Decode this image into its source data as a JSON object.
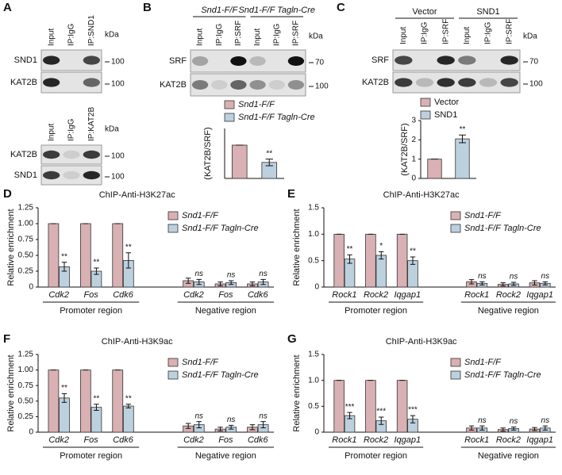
{
  "panels": [
    "A",
    "B",
    "C",
    "D",
    "E",
    "F",
    "G"
  ],
  "blots": [
    {
      "unit": "kDa",
      "lanes": [
        "Input",
        "IP:IgG",
        "IP:SND1"
      ],
      "rows": [
        {
          "label": "SND1",
          "marker": "100"
        },
        {
          "label": "KAT2B",
          "marker": "100"
        }
      ]
    },
    {
      "unit": "kDa",
      "lanes": [
        "Input",
        "IP:IgG",
        "IP:KAT2B"
      ],
      "rows": [
        {
          "label": "KAT2B",
          "marker": "100"
        },
        {
          "label": "SND1",
          "marker": "100"
        }
      ]
    },
    {
      "unit": "kDa",
      "groups": [
        "Snd1-F/F",
        "Snd1-F/F Tagln-Cre"
      ],
      "lanes": [
        "Input",
        "IP:IgG",
        "IP:SRF",
        "Input",
        "IP:IgG",
        "IP:SRF"
      ],
      "rows": [
        {
          "label": "SRF",
          "marker": "70"
        },
        {
          "label": "KAT2B",
          "marker": "100"
        }
      ]
    },
    {
      "unit": "kDa",
      "groups": [
        "Vector",
        "SND1"
      ],
      "lanes": [
        "Input",
        "IP:IgG",
        "IP:SRF",
        "Input",
        "IP:IgG",
        "IP:SRF"
      ],
      "rows": [
        {
          "label": "SRF",
          "marker": "70"
        },
        {
          "label": "KAT2B",
          "marker": "100"
        }
      ]
    }
  ],
  "chart_data": [
    {
      "type": "bar",
      "y_label": "(KAT2B/SRF)",
      "ylim": [
        0,
        1.5
      ],
      "italic": true,
      "legend": "top",
      "series": [
        {
          "name": "Snd1-F/F",
          "color": "#d9b0b3",
          "values": [
            1.0
          ],
          "errors": [
            0.0
          ]
        },
        {
          "name": "Snd1-F/F Tagln-Cre",
          "color": "#bcd0de",
          "values": [
            0.48
          ],
          "errors": [
            0.1
          ],
          "annotations": [
            "**"
          ]
        }
      ]
    },
    {
      "type": "bar",
      "y_label": "(KAT2B/SRF)",
      "ylim": [
        0,
        3
      ],
      "yticks": [
        0,
        1,
        2,
        3
      ],
      "italic": false,
      "legend": "top",
      "series": [
        {
          "name": "Vector",
          "color": "#d9b0b3",
          "values": [
            1.0
          ],
          "errors": [
            0.0
          ]
        },
        {
          "name": "SND1",
          "color": "#bcd0de",
          "values": [
            2.05
          ],
          "errors": [
            0.2
          ],
          "annotations": [
            "**"
          ]
        }
      ]
    },
    {
      "type": "bar",
      "title": "ChIP-Anti-H3K27ac",
      "y_label": "Relative enrichment",
      "ylim": [
        0,
        1.25
      ],
      "yticks": [
        0,
        0.25,
        {
          "value": 0.5,
          "label": "0.50"
        },
        {
          "value": 0.75,
          "label": "0.75"
        },
        {
          "value": 1,
          "label": "1.00"
        },
        1.25
      ],
      "italic": true,
      "legend": "upper right",
      "groups": [
        {
          "label": "Promoter region",
          "categories": [
            "Cdk2",
            "Fos",
            "Cdk6"
          ]
        },
        {
          "label": "Negative region",
          "categories": [
            "Cdk2",
            "Fos",
            "Cdk6"
          ]
        }
      ],
      "series": [
        {
          "name": "Snd1-F/F",
          "color": "#d9b0b3",
          "values": [
            1,
            1,
            1,
            0.1,
            0.05,
            0.05
          ],
          "errors": [
            0,
            0,
            0,
            0.04,
            0.03,
            0.03
          ]
        },
        {
          "name": "Snd1-F/F Tagln-Cre",
          "color": "#bcd0de",
          "values": [
            0.32,
            0.25,
            0.42,
            0.08,
            0.07,
            0.08
          ],
          "errors": [
            0.07,
            0.05,
            0.12,
            0.04,
            0.03,
            0.04
          ],
          "annotations": [
            "**",
            "**",
            "**",
            "ns",
            "ns",
            "ns"
          ]
        }
      ]
    },
    {
      "type": "bar",
      "title": "ChIP-Anti-H3K27ac",
      "y_label": "Relative enrichment",
      "ylim": [
        0,
        1.5
      ],
      "yticks": [
        0,
        0.5,
        {
          "value": 1,
          "label": "1.0"
        },
        1.5
      ],
      "italic": true,
      "legend": "upper right",
      "groups": [
        {
          "label": "Promoter region",
          "categories": [
            "Rock1",
            "Rock2",
            "Iqgap1"
          ]
        },
        {
          "label": "Negative region",
          "categories": [
            "Rock1",
            "Rock2",
            "Iqgap1"
          ]
        }
      ],
      "series": [
        {
          "name": "Snd1-F/F",
          "color": "#d9b0b3",
          "values": [
            1,
            1,
            1,
            0.1,
            0.05,
            0.08
          ],
          "errors": [
            0,
            0,
            0,
            0.04,
            0.03,
            0.04
          ],
          "annotations": []
        },
        {
          "name": "Snd1-F/F Tagln-Cre",
          "color": "#bcd0de",
          "values": [
            0.53,
            0.6,
            0.5,
            0.07,
            0.06,
            0.07
          ],
          "errors": [
            0.08,
            0.07,
            0.07,
            0.03,
            0.03,
            0.03
          ],
          "annotations": [
            "**",
            "*",
            "**",
            "ns",
            "ns",
            "ns"
          ]
        }
      ]
    },
    {
      "type": "bar",
      "title": "ChIP-Anti-H3K9ac",
      "y_label": "Relative enrichment",
      "ylim": [
        0,
        1.25
      ],
      "yticks": [
        0,
        0.25,
        {
          "value": 0.5,
          "label": "0.50"
        },
        {
          "value": 0.75,
          "label": "0.75"
        },
        {
          "value": 1,
          "label": "1.00"
        },
        1.25
      ],
      "italic": true,
      "legend": "upper right",
      "groups": [
        {
          "label": "Promoter region",
          "categories": [
            "Cdk2",
            "Fos",
            "Cdk6"
          ]
        },
        {
          "label": "Negative region",
          "categories": [
            "Cdk2",
            "Fos",
            "Cdk6"
          ]
        }
      ],
      "series": [
        {
          "name": "Snd1-F/F",
          "color": "#d9b0b3",
          "values": [
            1,
            1,
            1,
            0.1,
            0.05,
            0.08
          ],
          "errors": [
            0,
            0,
            0,
            0.04,
            0.03,
            0.04
          ]
        },
        {
          "name": "Snd1-F/F Tagln-Cre",
          "color": "#bcd0de",
          "values": [
            0.55,
            0.4,
            0.42,
            0.12,
            0.08,
            0.12
          ],
          "errors": [
            0.07,
            0.05,
            0.03,
            0.05,
            0.03,
            0.05
          ],
          "annotations": [
            "**",
            "**",
            "**",
            "ns",
            "ns",
            "ns"
          ]
        }
      ]
    },
    {
      "type": "bar",
      "title": "ChIP-Anti-H3K9ac",
      "y_label": "Relative enrichment",
      "ylim": [
        0,
        1.5
      ],
      "yticks": [
        0,
        0.5,
        {
          "value": 1,
          "label": "1.0"
        },
        1.5
      ],
      "italic": true,
      "legend": "upper right",
      "groups": [
        {
          "label": "Promoter region",
          "categories": [
            "Rock1",
            "Rock2",
            "Iqgap1"
          ]
        },
        {
          "label": "Negative region",
          "categories": [
            "Rock1",
            "Rock2",
            "Iqgap1"
          ]
        }
      ],
      "series": [
        {
          "name": "Snd1-F/F",
          "color": "#d9b0b3",
          "values": [
            1,
            1,
            1,
            0.08,
            0.05,
            0.06
          ],
          "errors": [
            0,
            0,
            0,
            0.04,
            0.03,
            0.03
          ]
        },
        {
          "name": "Snd1-F/F Tagln-Cre",
          "color": "#bcd0de",
          "values": [
            0.32,
            0.22,
            0.25,
            0.08,
            0.07,
            0.08
          ],
          "errors": [
            0.06,
            0.07,
            0.07,
            0.04,
            0.03,
            0.04
          ],
          "annotations": [
            "***",
            "***",
            "***",
            "ns",
            "ns",
            "ns"
          ]
        }
      ]
    }
  ]
}
